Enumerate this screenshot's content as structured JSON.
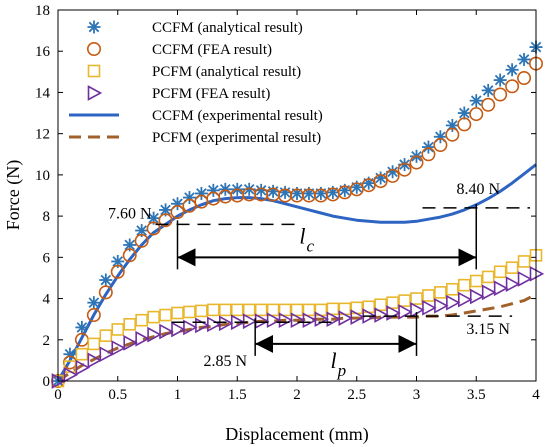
{
  "chart_data": {
    "type": "line",
    "xlabel": "Displacement (mm)",
    "ylabel": "Force (N)",
    "xlim": [
      0,
      4
    ],
    "ylim": [
      0,
      18
    ],
    "xticks": [
      "0",
      "0.5",
      "1",
      "1.5",
      "2",
      "2.5",
      "3",
      "3.5",
      "4"
    ],
    "yticks": [
      "0",
      "2",
      "4",
      "6",
      "8",
      "10",
      "12",
      "14",
      "16",
      "18"
    ],
    "grid": false,
    "legend_position": "top-left",
    "colors": {
      "ccfm_analytical": "#2e75b6",
      "ccfm_fea": "#c55a11",
      "pcfm_analytical": "#e8b72c",
      "pcfm_fea": "#7030a0",
      "ccfm_experimental": "#2e64c2",
      "pcfm_experimental": "#a0612b"
    },
    "series": [
      {
        "name": "CCFM (analytical result)",
        "marker": "asterisk",
        "x": [
          0,
          0.1,
          0.2,
          0.3,
          0.4,
          0.5,
          0.6,
          0.7,
          0.8,
          0.9,
          1.0,
          1.1,
          1.2,
          1.3,
          1.4,
          1.5,
          1.6,
          1.7,
          1.8,
          1.9,
          2.0,
          2.1,
          2.2,
          2.3,
          2.4,
          2.5,
          2.6,
          2.7,
          2.8,
          2.9,
          3.0,
          3.1,
          3.2,
          3.3,
          3.4,
          3.5,
          3.6,
          3.7,
          3.8,
          3.9,
          4.0
        ],
        "values": [
          0,
          1.3,
          2.6,
          3.8,
          4.9,
          5.8,
          6.6,
          7.3,
          7.9,
          8.3,
          8.6,
          8.9,
          9.1,
          9.25,
          9.3,
          9.3,
          9.3,
          9.25,
          9.2,
          9.15,
          9.1,
          9.1,
          9.1,
          9.15,
          9.25,
          9.4,
          9.6,
          9.85,
          10.15,
          10.5,
          10.9,
          11.35,
          11.85,
          12.4,
          13.0,
          13.6,
          14.1,
          14.6,
          15.1,
          15.6,
          16.2
        ]
      },
      {
        "name": "CCFM (FEA result)",
        "marker": "circle",
        "x": [
          0,
          0.1,
          0.2,
          0.3,
          0.4,
          0.5,
          0.6,
          0.7,
          0.8,
          0.9,
          1.0,
          1.1,
          1.2,
          1.3,
          1.4,
          1.5,
          1.6,
          1.7,
          1.8,
          1.9,
          2.0,
          2.1,
          2.2,
          2.3,
          2.4,
          2.5,
          2.6,
          2.7,
          2.8,
          2.9,
          3.0,
          3.1,
          3.2,
          3.3,
          3.4,
          3.5,
          3.6,
          3.7,
          3.8,
          3.9,
          4.0
        ],
        "values": [
          0,
          0.9,
          2.0,
          3.2,
          4.3,
          5.3,
          6.1,
          6.8,
          7.4,
          7.8,
          8.2,
          8.5,
          8.7,
          8.85,
          8.95,
          9.0,
          9.05,
          9.05,
          9.05,
          9.0,
          9.0,
          9.0,
          9.0,
          9.05,
          9.15,
          9.3,
          9.5,
          9.7,
          9.95,
          10.25,
          10.6,
          11.0,
          11.45,
          11.95,
          12.45,
          12.95,
          13.4,
          13.9,
          14.3,
          14.7,
          15.4
        ]
      },
      {
        "name": "PCFM (analytical result)",
        "marker": "square",
        "x": [
          0,
          0.1,
          0.2,
          0.3,
          0.4,
          0.5,
          0.6,
          0.7,
          0.8,
          0.9,
          1.0,
          1.1,
          1.2,
          1.3,
          1.4,
          1.5,
          1.6,
          1.7,
          1.8,
          1.9,
          2.0,
          2.1,
          2.2,
          2.3,
          2.4,
          2.5,
          2.6,
          2.7,
          2.8,
          2.9,
          3.0,
          3.1,
          3.2,
          3.3,
          3.4,
          3.5,
          3.6,
          3.7,
          3.8,
          3.9,
          4.0
        ],
        "values": [
          0,
          0.7,
          1.3,
          1.8,
          2.2,
          2.5,
          2.75,
          2.95,
          3.1,
          3.2,
          3.3,
          3.35,
          3.4,
          3.45,
          3.45,
          3.45,
          3.45,
          3.45,
          3.45,
          3.45,
          3.45,
          3.45,
          3.45,
          3.5,
          3.5,
          3.55,
          3.6,
          3.7,
          3.8,
          3.9,
          4.0,
          4.15,
          4.3,
          4.45,
          4.65,
          4.85,
          5.05,
          5.3,
          5.5,
          5.8,
          6.1
        ]
      },
      {
        "name": "PCFM (FEA result)",
        "marker": "triangle-right",
        "x": [
          0,
          0.1,
          0.2,
          0.3,
          0.4,
          0.5,
          0.6,
          0.7,
          0.8,
          0.9,
          1.0,
          1.1,
          1.2,
          1.3,
          1.4,
          1.5,
          1.6,
          1.7,
          1.8,
          1.9,
          2.0,
          2.1,
          2.2,
          2.3,
          2.4,
          2.5,
          2.6,
          2.7,
          2.8,
          2.9,
          3.0,
          3.1,
          3.2,
          3.3,
          3.4,
          3.5,
          3.6,
          3.7,
          3.8,
          3.9,
          4.0
        ],
        "values": [
          0,
          0.3,
          0.65,
          1.0,
          1.3,
          1.6,
          1.85,
          2.05,
          2.25,
          2.4,
          2.5,
          2.6,
          2.7,
          2.75,
          2.8,
          2.85,
          2.9,
          2.9,
          2.95,
          2.95,
          2.95,
          2.95,
          3.0,
          3.0,
          3.05,
          3.1,
          3.15,
          3.2,
          3.3,
          3.35,
          3.45,
          3.55,
          3.65,
          3.8,
          3.95,
          4.1,
          4.3,
          4.5,
          4.7,
          4.95,
          5.2
        ]
      },
      {
        "name": "CCFM (experimental result)",
        "style": "solid",
        "x": [
          0,
          0.1,
          0.2,
          0.3,
          0.4,
          0.5,
          0.6,
          0.7,
          0.8,
          0.9,
          1.0,
          1.1,
          1.2,
          1.3,
          1.4,
          1.5,
          1.6,
          1.7,
          1.8,
          1.9,
          2.0,
          2.1,
          2.2,
          2.3,
          2.4,
          2.5,
          2.6,
          2.7,
          2.8,
          2.9,
          3.0,
          3.1,
          3.2,
          3.3,
          3.4,
          3.5,
          3.6,
          3.7,
          3.8,
          3.9,
          4.0
        ],
        "values": [
          0,
          1.0,
          2.1,
          3.2,
          4.2,
          5.1,
          5.9,
          6.6,
          7.2,
          7.6,
          8.0,
          8.3,
          8.55,
          8.75,
          8.85,
          8.9,
          8.9,
          8.85,
          8.75,
          8.6,
          8.45,
          8.3,
          8.15,
          8.0,
          7.9,
          7.8,
          7.75,
          7.7,
          7.7,
          7.7,
          7.75,
          7.85,
          7.95,
          8.1,
          8.3,
          8.55,
          8.85,
          9.2,
          9.6,
          10.05,
          10.5
        ]
      },
      {
        "name": "PCFM (experimental result)",
        "style": "dashed",
        "x": [
          0,
          0.1,
          0.2,
          0.3,
          0.4,
          0.5,
          0.6,
          0.7,
          0.8,
          0.9,
          1.0,
          1.1,
          1.2,
          1.3,
          1.4,
          1.5,
          1.6,
          1.7,
          1.8,
          1.9,
          2.0,
          2.1,
          2.2,
          2.3,
          2.4,
          2.5,
          2.6,
          2.7,
          2.8,
          2.9,
          3.0,
          3.1,
          3.2,
          3.3,
          3.4,
          3.5,
          3.6,
          3.7,
          3.8,
          3.9,
          4.0
        ],
        "values": [
          0,
          0.4,
          0.75,
          1.05,
          1.35,
          1.6,
          1.8,
          2.0,
          2.15,
          2.3,
          2.4,
          2.5,
          2.6,
          2.65,
          2.75,
          2.8,
          2.85,
          2.9,
          2.9,
          2.95,
          2.95,
          3.0,
          3.0,
          3.0,
          3.05,
          3.05,
          3.05,
          3.1,
          3.1,
          3.1,
          3.1,
          3.15,
          3.15,
          3.2,
          3.3,
          3.4,
          3.5,
          3.6,
          3.75,
          3.9,
          4.2
        ]
      }
    ],
    "annotations": {
      "lc": {
        "symbol": "l",
        "subscript": "c",
        "x_from": 1.0,
        "x_to": 3.5,
        "arrow_y": 6.0,
        "left_value_label": "7.60 N",
        "left_y": 7.6,
        "right_value_label": "8.40 N",
        "right_y": 8.4
      },
      "lp": {
        "symbol": "l",
        "subscript": "p",
        "x_from": 1.65,
        "x_to": 3.0,
        "arrow_y": 1.8,
        "left_value_label": "2.85 N",
        "left_y": 2.85,
        "right_value_label": "3.15 N",
        "right_y": 3.15
      }
    }
  }
}
